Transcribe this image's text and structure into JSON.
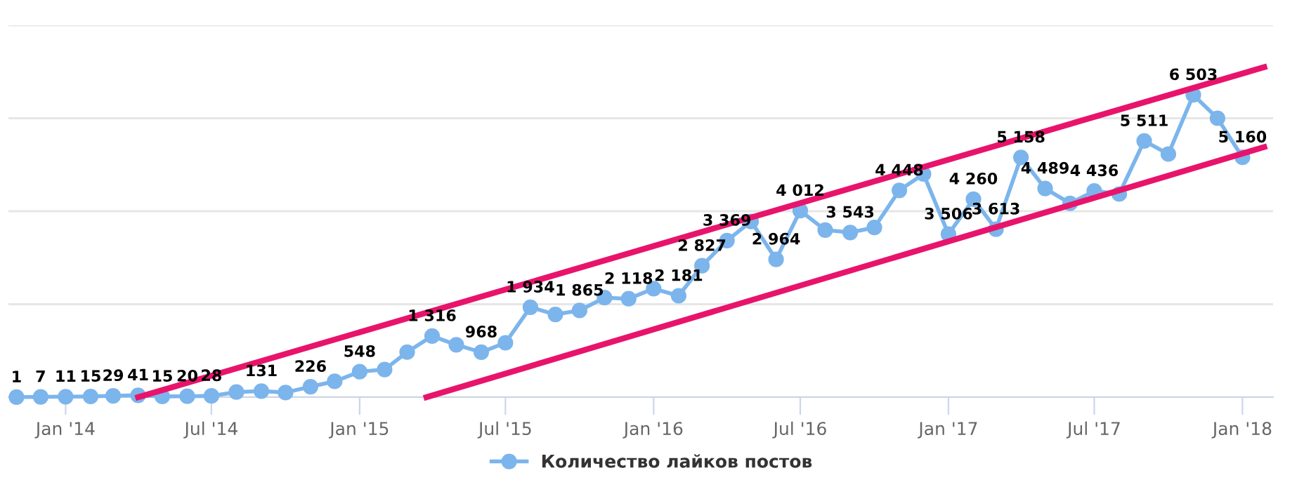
{
  "chart_data": {
    "type": "line",
    "x": [
      "2013-11",
      "2013-12",
      "2014-01",
      "2014-02",
      "2014-03",
      "2014-04",
      "2014-05",
      "2014-06",
      "2014-07",
      "2014-08",
      "2014-09",
      "2014-10",
      "2014-11",
      "2014-12",
      "2015-01",
      "2015-02",
      "2015-03",
      "2015-04",
      "2015-05",
      "2015-06",
      "2015-07",
      "2015-08",
      "2015-09",
      "2015-10",
      "2015-11",
      "2015-12",
      "2016-01",
      "2016-02",
      "2016-03",
      "2016-04",
      "2016-05",
      "2016-06",
      "2016-07",
      "2016-08",
      "2016-09",
      "2016-10",
      "2016-11",
      "2016-12",
      "2017-01",
      "2017-02",
      "2017-03",
      "2017-04",
      "2017-05",
      "2017-06",
      "2017-07",
      "2017-08",
      "2017-09",
      "2017-10",
      "2017-11",
      "2017-12",
      "2018-01"
    ],
    "series": [
      {
        "name": "Количество лайков постов",
        "color": "#7cb5ec",
        "marker": "circle",
        "line_style": "solid",
        "values": [
          1,
          7,
          11,
          15,
          29,
          41,
          15,
          20,
          28,
          110,
          131,
          100,
          226,
          340,
          548,
          595,
          970,
          1316,
          1127,
          968,
          1170,
          1934,
          1780,
          1865,
          2140,
          2118,
          2335,
          2181,
          2827,
          3369,
          3780,
          2964,
          4012,
          3595,
          3543,
          3650,
          4448,
          4800,
          3506,
          4260,
          3613,
          5158,
          4489,
          4170,
          4436,
          4370,
          5511,
          5230,
          6503,
          6000,
          5160
        ],
        "value_labels": [
          "1",
          "7",
          "11",
          "15",
          "29",
          "41",
          "15",
          "20",
          "28",
          null,
          "131",
          null,
          "226",
          null,
          "548",
          null,
          null,
          "1 316",
          null,
          "968",
          null,
          "1 934",
          null,
          "1 865",
          null,
          "2 118",
          null,
          "2 181",
          "2 827",
          "3 369",
          null,
          "2 964",
          "4 012",
          null,
          "3 543",
          null,
          "4 448",
          null,
          "3 506",
          "4 260",
          "3 613",
          "5 158",
          "4 489",
          null,
          "4 436",
          null,
          "5 511",
          null,
          "6 503",
          null,
          "5 160"
        ]
      },
      {
        "type": "line",
        "color": "#e8146c",
        "marker": "none",
        "line_style": "solid",
        "x": [
          "2014-04-01",
          "2018-01-28"
        ],
        "values": [
          0,
          7100
        ]
      },
      {
        "type": "line",
        "color": "#e8146c",
        "marker": "none",
        "line_style": "solid",
        "x": [
          "2015-03-25",
          "2018-01-28"
        ],
        "values": [
          0,
          5380
        ]
      }
    ],
    "xlim": [
      "2013-10-22",
      "2018-02-08"
    ],
    "ylim": [
      0,
      8000
    ],
    "xticks": [
      {
        "value": "2014-01",
        "label": "Jan '14"
      },
      {
        "value": "2014-07",
        "label": "Jul '14"
      },
      {
        "value": "2015-01",
        "label": "Jan '15"
      },
      {
        "value": "2015-07",
        "label": "Jul '15"
      },
      {
        "value": "2016-01",
        "label": "Jan '16"
      },
      {
        "value": "2016-07",
        "label": "Jul '16"
      },
      {
        "value": "2017-01",
        "label": "Jan '17"
      },
      {
        "value": "2017-07",
        "label": "Jul '17"
      },
      {
        "value": "2018-01",
        "label": "Jan '18"
      }
    ],
    "yticks": [
      {
        "value": 0,
        "label": null
      },
      {
        "value": 2000,
        "label": null
      },
      {
        "value": 4000,
        "label": null
      },
      {
        "value": 6000,
        "label": null
      },
      {
        "value": 8000,
        "label": null
      }
    ],
    "tick_labels": "x",
    "grid": "y",
    "legend": "bottom"
  }
}
